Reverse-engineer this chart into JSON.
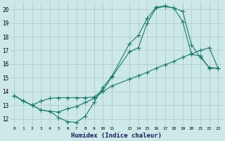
{
  "bg_color": "#cce8e8",
  "grid_color": "#b0cccc",
  "line_color": "#1a7a6a",
  "xlim": [
    -0.5,
    23.5
  ],
  "ylim": [
    11.5,
    20.5
  ],
  "xtick_vals": [
    0,
    1,
    2,
    3,
    4,
    5,
    6,
    7,
    8,
    9,
    10,
    11,
    13,
    14,
    15,
    16,
    17,
    18,
    19,
    20,
    21,
    22,
    23
  ],
  "xtick_labels": [
    "0",
    "1",
    "2",
    "3",
    "4",
    "5",
    "6",
    "7",
    "8",
    "9",
    "10",
    "11",
    "13",
    "14",
    "15",
    "16",
    "17",
    "18",
    "19",
    "20",
    "21",
    "22",
    "23"
  ],
  "ytick_vals": [
    12,
    13,
    14,
    15,
    16,
    17,
    18,
    19,
    20
  ],
  "ytick_labels": [
    "12",
    "13",
    "14",
    "15",
    "16",
    "17",
    "18",
    "19",
    "20"
  ],
  "xlabel": "Humidex (Indice chaleur)",
  "line1_x": [
    0,
    1,
    2,
    3,
    4,
    5,
    6,
    7,
    8,
    9,
    10,
    11,
    13,
    14,
    15,
    16,
    17,
    18,
    19,
    20,
    21,
    22,
    23
  ],
  "line1_y": [
    13.7,
    13.3,
    13.0,
    12.65,
    12.55,
    12.1,
    11.8,
    11.75,
    12.2,
    13.2,
    14.3,
    15.1,
    17.5,
    18.1,
    19.35,
    20.15,
    20.25,
    20.1,
    19.85,
    17.4,
    16.5,
    15.75,
    15.7
  ],
  "line2_x": [
    0,
    1,
    2,
    3,
    4,
    5,
    6,
    7,
    8,
    9,
    10,
    11,
    13,
    14,
    15,
    16,
    17,
    18,
    19,
    20,
    21,
    22,
    23
  ],
  "line2_y": [
    13.7,
    13.3,
    13.0,
    13.3,
    13.5,
    13.55,
    13.55,
    13.55,
    13.55,
    13.6,
    14.1,
    15.05,
    16.9,
    17.2,
    19.0,
    20.1,
    20.2,
    20.1,
    19.1,
    16.7,
    16.6,
    15.7,
    15.7
  ],
  "line3_x": [
    0,
    1,
    2,
    3,
    4,
    5,
    6,
    7,
    8,
    9,
    10,
    11,
    13,
    14,
    15,
    16,
    17,
    18,
    19,
    20,
    21,
    22,
    23
  ],
  "line3_y": [
    13.7,
    13.3,
    13.0,
    12.65,
    12.55,
    12.5,
    12.75,
    12.9,
    13.2,
    13.5,
    14.0,
    14.4,
    14.9,
    15.15,
    15.4,
    15.7,
    15.95,
    16.2,
    16.5,
    16.75,
    17.0,
    17.2,
    15.7
  ]
}
